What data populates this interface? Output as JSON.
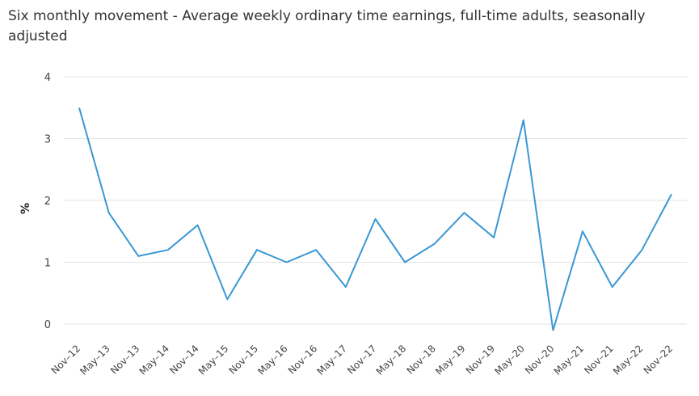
{
  "chart_data": {
    "type": "line",
    "title": "Six monthly movement - Average weekly ordinary time earnings, full-time adults, seasonally adjusted",
    "xlabel": "",
    "ylabel": "%",
    "ylim": [
      0,
      4
    ],
    "yticks": [
      0,
      1,
      2,
      3,
      4
    ],
    "grid": true,
    "legend": "none",
    "categories": [
      "Nov–12",
      "May–13",
      "Nov–13",
      "May–14",
      "Nov–14",
      "May–15",
      "Nov–15",
      "May–16",
      "Nov–16",
      "May–17",
      "Nov–17",
      "May–18",
      "Nov–18",
      "May–19",
      "Nov–19",
      "May–20",
      "Nov–20",
      "May–21",
      "Nov–21",
      "May–22",
      "Nov–22"
    ],
    "series": [
      {
        "values": [
          3.5,
          1.8,
          1.1,
          1.2,
          1.6,
          0.4,
          1.2,
          1.0,
          1.2,
          0.6,
          1.7,
          1.0,
          1.3,
          1.8,
          1.4,
          3.3,
          -0.1,
          1.5,
          0.6,
          1.2,
          2.1
        ]
      }
    ],
    "colors": {
      "line": "#3a97d4",
      "grid": "#e3e3e3"
    }
  }
}
